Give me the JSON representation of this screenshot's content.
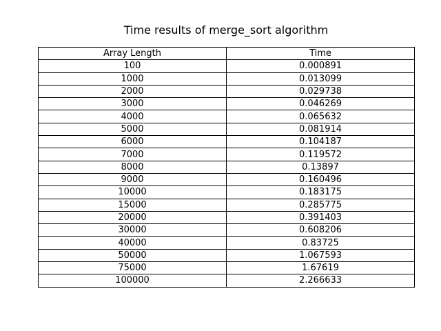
{
  "chart_data": {
    "type": "table",
    "title": "Time results of merge_sort algorithm",
    "columns": [
      "Array Length",
      "Time"
    ],
    "rows": [
      [
        "100",
        "0.000891"
      ],
      [
        "1000",
        "0.013099"
      ],
      [
        "2000",
        "0.029738"
      ],
      [
        "3000",
        "0.046269"
      ],
      [
        "4000",
        "0.065632"
      ],
      [
        "5000",
        "0.081914"
      ],
      [
        "6000",
        "0.104187"
      ],
      [
        "7000",
        "0.119572"
      ],
      [
        "8000",
        "0.13897"
      ],
      [
        "9000",
        "0.160496"
      ],
      [
        "10000",
        "0.183175"
      ],
      [
        "15000",
        "0.285775"
      ],
      [
        "20000",
        "0.391403"
      ],
      [
        "30000",
        "0.608206"
      ],
      [
        "40000",
        "0.83725"
      ],
      [
        "50000",
        "1.067593"
      ],
      [
        "75000",
        "1.67619"
      ],
      [
        "100000",
        "2.266633"
      ]
    ]
  }
}
